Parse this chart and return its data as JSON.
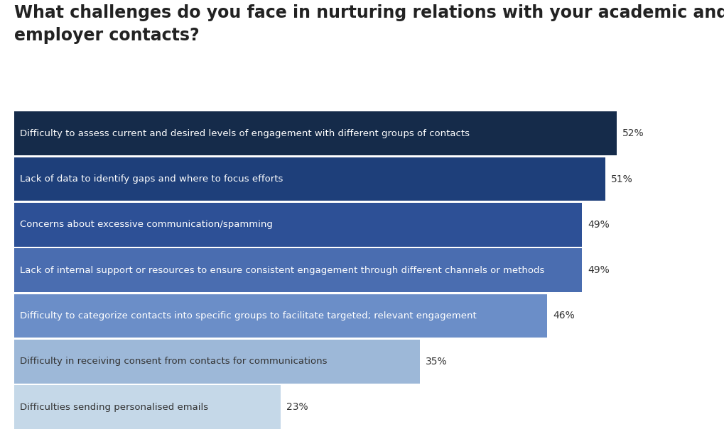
{
  "title": "What challenges do you face in nurturing relations with your academic and\nemployer contacts?",
  "categories": [
    "Difficulty to assess current and desired levels of engagement with different groups of contacts",
    "Lack of data to identify gaps and where to focus efforts",
    "Concerns about excessive communication/spamming",
    "Lack of internal support or resources to ensure consistent engagement through different channels or methods",
    "Difficulty to categorize contacts into specific groups to facilitate targeted; relevant engagement",
    "Difficulty in receiving consent from contacts for communications",
    "Difficulties sending personalised emails"
  ],
  "values": [
    52,
    51,
    49,
    49,
    46,
    35,
    23
  ],
  "bar_colors": [
    "#152b4a",
    "#1e3f7a",
    "#2d5096",
    "#4a6db0",
    "#6b8ec8",
    "#9db8d8",
    "#c5d8e8"
  ],
  "label_colors": [
    "#ffffff",
    "#ffffff",
    "#ffffff",
    "#ffffff",
    "#ffffff",
    "#333333",
    "#333333"
  ],
  "pct_colors": [
    "#333333",
    "#333333",
    "#333333",
    "#333333",
    "#333333",
    "#333333",
    "#333333"
  ],
  "background_color": "#ffffff",
  "title_fontsize": 17,
  "label_fontsize": 9.5,
  "pct_fontsize": 10,
  "max_value": 60,
  "bar_gap": 0.04
}
